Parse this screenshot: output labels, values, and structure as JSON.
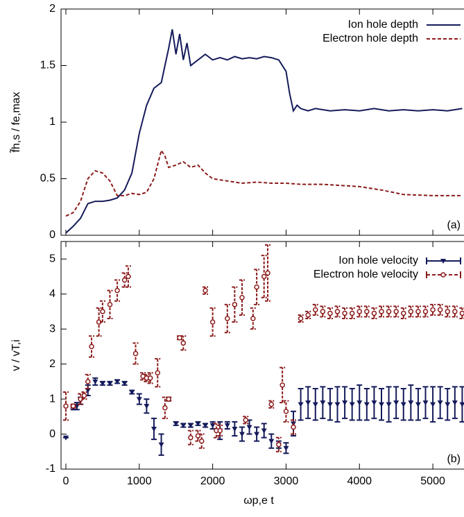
{
  "chart_data": [
    {
      "type": "line",
      "ylabel": "f̃h,s / fe,max",
      "annotation": "(a)",
      "legend": "top-right",
      "xlim": [
        -66,
        5415
      ],
      "xticks": [
        0,
        1000,
        2000,
        3000,
        4000,
        5000
      ],
      "ylim": [
        0,
        2
      ],
      "yticks": [
        0,
        0.5,
        1,
        1.5,
        2
      ],
      "series": [
        {
          "name": "Ion hole depth",
          "color": "#141a5a",
          "style": "solid",
          "x": [
            0,
            100,
            200,
            300,
            400,
            500,
            600,
            700,
            800,
            900,
            1000,
            1100,
            1200,
            1300,
            1350,
            1400,
            1450,
            1500,
            1550,
            1600,
            1650,
            1700,
            1800,
            1900,
            2000,
            2100,
            2200,
            2300,
            2400,
            2500,
            2600,
            2700,
            2800,
            2900,
            3000,
            3050,
            3100,
            3150,
            3200,
            3300,
            3400,
            3600,
            3800,
            4000,
            4200,
            4400,
            4600,
            4800,
            5000,
            5200,
            5400
          ],
          "values": [
            0.02,
            0.08,
            0.15,
            0.28,
            0.3,
            0.3,
            0.31,
            0.33,
            0.4,
            0.55,
            0.9,
            1.15,
            1.3,
            1.35,
            1.5,
            1.65,
            1.82,
            1.6,
            1.78,
            1.55,
            1.7,
            1.5,
            1.55,
            1.6,
            1.55,
            1.57,
            1.55,
            1.58,
            1.56,
            1.57,
            1.56,
            1.58,
            1.57,
            1.55,
            1.45,
            1.25,
            1.1,
            1.15,
            1.12,
            1.1,
            1.12,
            1.1,
            1.11,
            1.1,
            1.12,
            1.1,
            1.11,
            1.1,
            1.11,
            1.1,
            1.12
          ]
        },
        {
          "name": "Electron hole depth",
          "color": "#8b1a1a",
          "style": "dashed",
          "x": [
            0,
            100,
            200,
            300,
            400,
            500,
            600,
            700,
            800,
            900,
            1000,
            1100,
            1200,
            1300,
            1350,
            1400,
            1500,
            1600,
            1700,
            1800,
            1900,
            2000,
            2200,
            2400,
            2600,
            2800,
            3000,
            3200,
            3500,
            4000,
            4300,
            4600,
            5000,
            5400
          ],
          "values": [
            0.17,
            0.2,
            0.3,
            0.5,
            0.57,
            0.55,
            0.48,
            0.35,
            0.35,
            0.37,
            0.36,
            0.38,
            0.5,
            0.75,
            0.7,
            0.6,
            0.62,
            0.65,
            0.6,
            0.62,
            0.55,
            0.5,
            0.48,
            0.46,
            0.47,
            0.46,
            0.46,
            0.45,
            0.45,
            0.43,
            0.4,
            0.36,
            0.35,
            0.35
          ]
        }
      ]
    },
    {
      "type": "errorbar",
      "xlabel": "ωp,e t",
      "ylabel": "v / vT,i",
      "annotation": "(b)",
      "legend": "top-right",
      "xlim": [
        -66,
        5415
      ],
      "xticks": [
        0,
        1000,
        2000,
        3000,
        4000,
        5000
      ],
      "ylim": [
        -1,
        5.5
      ],
      "yticks": [
        -1,
        0,
        1,
        2,
        3,
        4,
        5
      ],
      "series": [
        {
          "name": "Ion hole velocity",
          "color": "#141a5a",
          "marker": "triangle",
          "x": [
            0,
            100,
            150,
            200,
            300,
            400,
            500,
            600,
            700,
            800,
            900,
            1000,
            1100,
            1200,
            1300,
            1400,
            1500,
            1600,
            1700,
            1800,
            1900,
            2000,
            2100,
            2200,
            2300,
            2400,
            2500,
            2600,
            2700,
            2800,
            2900,
            3000,
            3100,
            3200,
            3300,
            3400,
            3500,
            3600,
            3700,
            3800,
            3900,
            4000,
            4100,
            4200,
            4300,
            4400,
            4500,
            4600,
            4700,
            4800,
            4900,
            5000,
            5100,
            5200,
            5300,
            5400
          ],
          "values": [
            -0.1,
            0.75,
            0.8,
            0.95,
            1.25,
            1.5,
            1.45,
            1.45,
            1.5,
            1.45,
            1.2,
            1.0,
            0.8,
            0.15,
            -0.3,
            1.0,
            0.3,
            0.25,
            0.25,
            0.3,
            0.25,
            0.25,
            0.1,
            0.25,
            0.15,
            0.0,
            0.2,
            0.0,
            0.1,
            -0.2,
            -0.3,
            -0.4,
            0.3,
            0.85,
            0.9,
            0.85,
            0.9,
            0.85,
            0.85,
            0.9,
            0.85,
            0.9,
            0.85,
            0.9,
            0.85,
            0.85,
            0.9,
            0.85,
            0.9,
            0.85,
            0.9,
            0.85,
            0.9,
            0.85,
            0.9,
            0.85
          ],
          "errors": [
            0,
            0.05,
            0.1,
            0.1,
            0.15,
            0.1,
            0.05,
            0.05,
            0.05,
            0.05,
            0.05,
            0.15,
            0.2,
            0.3,
            0.3,
            0.05,
            0.05,
            0.05,
            0.05,
            0.05,
            0.05,
            0.1,
            0.25,
            0.1,
            0.2,
            0.2,
            0.2,
            0.2,
            0.2,
            0.2,
            0.1,
            0.15,
            0.35,
            0.45,
            0.45,
            0.45,
            0.45,
            0.45,
            0.5,
            0.45,
            0.45,
            0.5,
            0.45,
            0.45,
            0.45,
            0.5,
            0.45,
            0.45,
            0.5,
            0.45,
            0.45,
            0.5,
            0.45,
            0.45,
            0.45,
            0.5
          ]
        },
        {
          "name": "Electron hole velocity",
          "color": "#8b1a1a",
          "marker": "circle",
          "x": [
            0,
            100,
            200,
            250,
            300,
            350,
            450,
            500,
            600,
            700,
            800,
            850,
            950,
            1050,
            1100,
            1150,
            1250,
            1350,
            1400,
            1550,
            1600,
            1700,
            1800,
            1850,
            1900,
            2000,
            2050,
            2100,
            2200,
            2300,
            2400,
            2450,
            2550,
            2600,
            2700,
            2750,
            2800,
            2900,
            2950,
            3000,
            3100,
            3200,
            3300,
            3400,
            3500,
            3600,
            3700,
            3800,
            3900,
            4000,
            4100,
            4200,
            4300,
            4400,
            4500,
            4600,
            4700,
            4800,
            4900,
            5000,
            5100,
            5200,
            5300,
            5400
          ],
          "values": [
            0.8,
            0.8,
            1.0,
            1.1,
            1.5,
            2.5,
            3.2,
            3.5,
            3.7,
            4.1,
            4.4,
            4.5,
            2.3,
            1.65,
            1.6,
            1.6,
            1.75,
            0.75,
            1.0,
            2.75,
            2.6,
            -0.1,
            -0.05,
            -0.2,
            4.1,
            3.2,
            0.1,
            0.1,
            3.3,
            3.7,
            3.9,
            0.4,
            3.3,
            4.2,
            4.5,
            4.6,
            0.85,
            -0.3,
            1.4,
            0.65,
            0.2,
            3.3,
            3.4,
            3.55,
            3.5,
            3.45,
            3.5,
            3.45,
            3.45,
            3.5,
            3.5,
            3.45,
            3.5,
            3.5,
            3.5,
            3.45,
            3.5,
            3.5,
            3.5,
            3.55,
            3.55,
            3.5,
            3.5,
            3.45
          ],
          "errors": [
            0.4,
            0.05,
            0.15,
            0.1,
            0.2,
            0.3,
            0.4,
            0.3,
            0.4,
            0.3,
            0.2,
            0.3,
            0.3,
            0.1,
            0.1,
            0.15,
            0.4,
            0.3,
            0.05,
            0.05,
            0.2,
            0.2,
            0.15,
            0.2,
            0.1,
            0.4,
            0.2,
            0.15,
            0.4,
            0.5,
            0.5,
            0.1,
            0.3,
            0.5,
            0.6,
            0.8,
            0.1,
            0.2,
            0.5,
            0.3,
            0.2,
            0.1,
            0.1,
            0.15,
            0.15,
            0.15,
            0.15,
            0.15,
            0.15,
            0.15,
            0.15,
            0.15,
            0.15,
            0.15,
            0.15,
            0.15,
            0.15,
            0.15,
            0.15,
            0.15,
            0.15,
            0.15,
            0.15,
            0.15
          ]
        }
      ]
    }
  ]
}
